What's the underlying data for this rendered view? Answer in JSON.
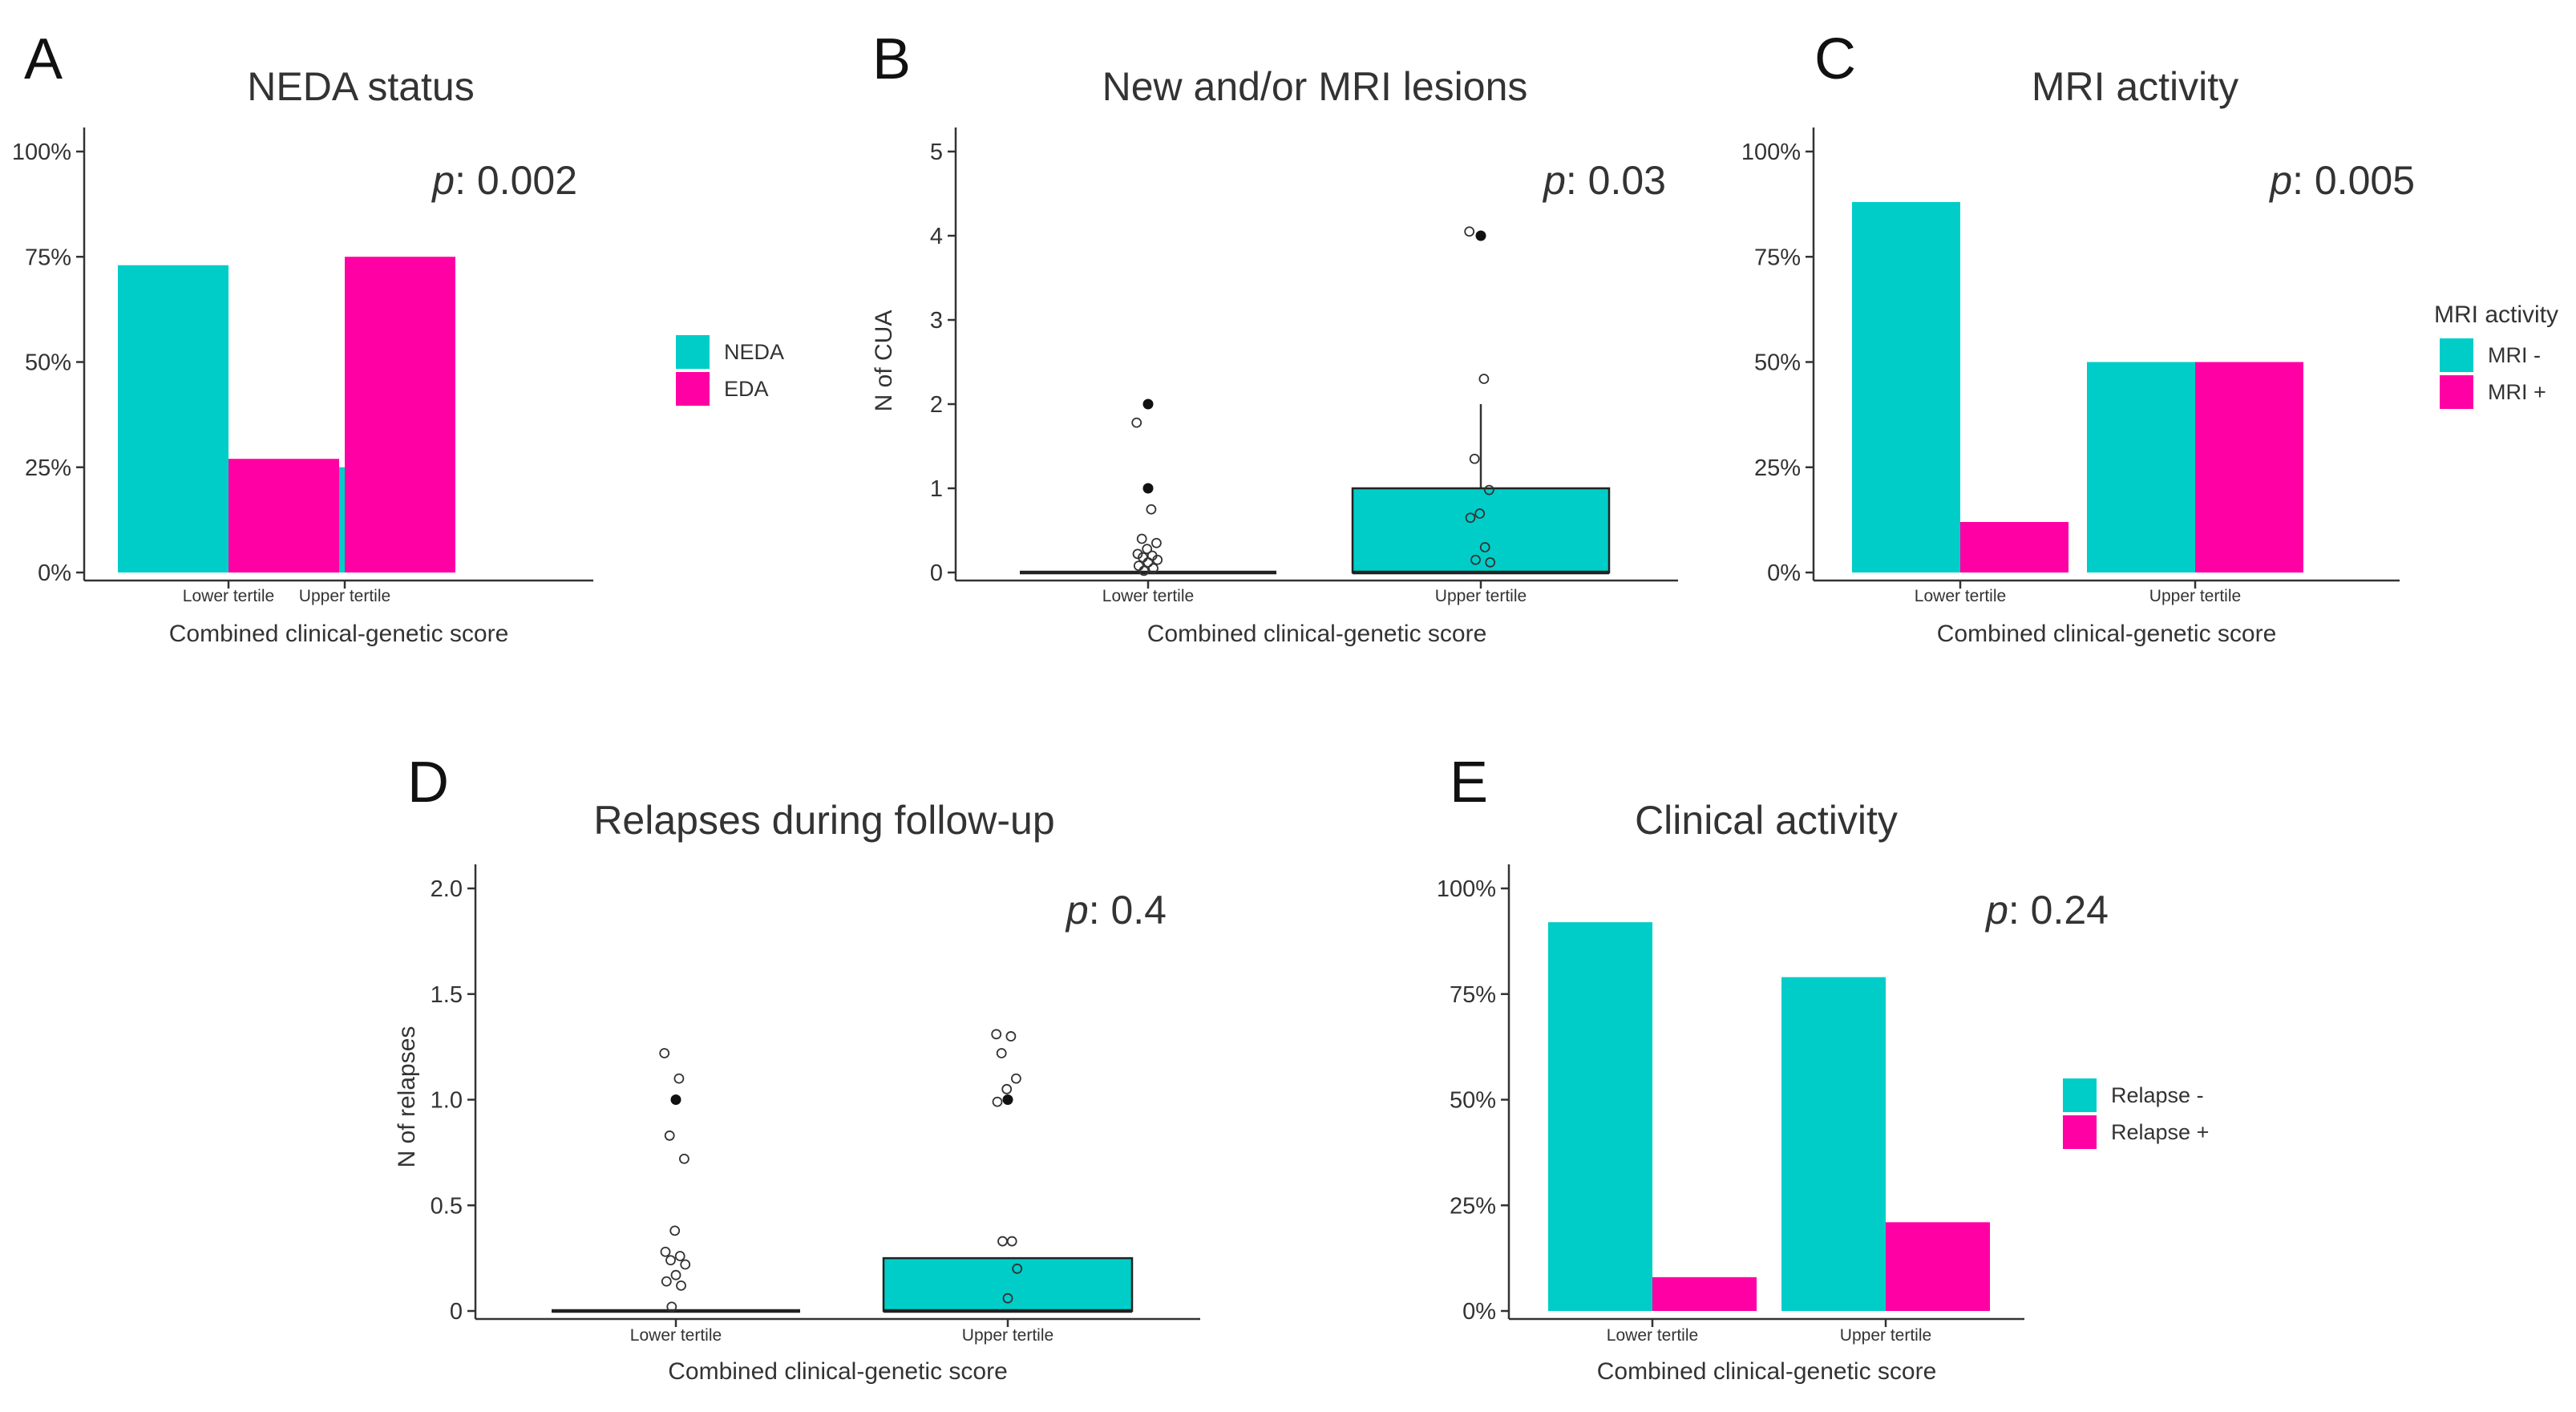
{
  "colors": {
    "teal": "#00cdc8",
    "magenta": "#ff00a4"
  },
  "chart_data": [
    {
      "panel": "A",
      "type": "bar",
      "title": "NEDA status",
      "xlabel": "Combined clinical-genetic score",
      "ylabel": "",
      "categories": [
        "Lower tertile",
        "Upper tertile"
      ],
      "series": [
        {
          "name": "NEDA",
          "color": "#00cdc8",
          "values": [
            0.73,
            0.25
          ]
        },
        {
          "name": "EDA",
          "color": "#ff00a4",
          "values": [
            0.27,
            0.75
          ]
        }
      ],
      "ylim": [
        0,
        1
      ],
      "yticks": [
        0,
        0.25,
        0.5,
        0.75,
        1
      ],
      "ytick_labels": [
        "0%",
        "25%",
        "50%",
        "75%",
        "100%"
      ],
      "legend_title": "",
      "pvalue": {
        "label": "p",
        "text": ": 0.002"
      }
    },
    {
      "panel": "B",
      "type": "boxplot",
      "title": "New and/or MRI lesions",
      "xlabel": "Combined clinical-genetic score",
      "ylabel": "N of CUA",
      "categories": [
        "Lower tertile",
        "Upper tertile"
      ],
      "boxes": [
        {
          "q1": 0,
          "median": 0,
          "q3": 0,
          "whisker_low": 0,
          "whisker_high": 0,
          "outliers": [
            2,
            1
          ],
          "points": [
            1.78,
            0.75,
            0.4,
            0.35,
            0.28,
            0.22,
            0.2,
            0.18,
            0.15,
            0.12,
            0.08,
            0.05,
            0.02
          ]
        },
        {
          "q1": 0,
          "median": 0,
          "q3": 1,
          "whisker_low": 0,
          "whisker_high": 2,
          "outliers": [
            4
          ],
          "points": [
            4.05,
            2.3,
            1.35,
            0.98,
            0.7,
            0.65,
            0.3,
            0.15,
            0.12
          ]
        }
      ],
      "ylim": [
        0,
        5
      ],
      "yticks": [
        0,
        1,
        2,
        3,
        4,
        5
      ],
      "ytick_labels": [
        "0",
        "1",
        "2",
        "3",
        "4",
        "5"
      ],
      "pvalue": {
        "label": "p",
        "text": ": 0.03"
      }
    },
    {
      "panel": "C",
      "type": "bar",
      "title": "MRI activity",
      "xlabel": "Combined clinical-genetic score",
      "ylabel": "",
      "categories": [
        "Lower tertile",
        "Upper tertile"
      ],
      "series": [
        {
          "name": "MRI -",
          "color": "#00cdc8",
          "values": [
            0.88,
            0.5
          ]
        },
        {
          "name": "MRI +",
          "color": "#ff00a4",
          "values": [
            0.12,
            0.5
          ]
        }
      ],
      "ylim": [
        0,
        1
      ],
      "yticks": [
        0,
        0.25,
        0.5,
        0.75,
        1
      ],
      "ytick_labels": [
        "0%",
        "25%",
        "50%",
        "75%",
        "100%"
      ],
      "legend_title": "MRI activity",
      "pvalue": {
        "label": "p",
        "text": ": 0.005"
      }
    },
    {
      "panel": "D",
      "type": "boxplot",
      "title": "Relapses during follow-up",
      "xlabel": "Combined clinical-genetic score",
      "ylabel": "N of relapses",
      "categories": [
        "Lower tertile",
        "Upper tertile"
      ],
      "boxes": [
        {
          "q1": 0,
          "median": 0,
          "q3": 0,
          "whisker_low": 0,
          "whisker_high": 0,
          "outliers": [
            1
          ],
          "points": [
            1.22,
            1.1,
            0.83,
            0.72,
            0.38,
            0.28,
            0.26,
            0.24,
            0.22,
            0.17,
            0.14,
            0.12,
            0.02
          ]
        },
        {
          "q1": 0,
          "median": 0,
          "q3": 0.25,
          "whisker_low": 0,
          "whisker_high": 0.25,
          "outliers": [
            1
          ],
          "points": [
            1.31,
            1.3,
            1.22,
            1.1,
            1.05,
            0.99,
            0.33,
            0.33,
            0.2,
            0.06
          ]
        }
      ],
      "ylim": [
        0,
        2
      ],
      "yticks": [
        0,
        0.5,
        1,
        1.5,
        2
      ],
      "ytick_labels": [
        "0",
        "0.5",
        "1.0",
        "1.5",
        "2.0"
      ],
      "pvalue": {
        "label": "p",
        "text": ": 0.4"
      }
    },
    {
      "panel": "E",
      "type": "bar",
      "title": "Clinical activity",
      "xlabel": "Combined clinical-genetic score",
      "ylabel": "",
      "categories": [
        "Lower tertile",
        "Upper tertile"
      ],
      "series": [
        {
          "name": "Relapse -",
          "color": "#00cdc8",
          "values": [
            0.92,
            0.79
          ]
        },
        {
          "name": "Relapse +",
          "color": "#ff00a4",
          "values": [
            0.08,
            0.21
          ]
        }
      ],
      "ylim": [
        0,
        1
      ],
      "yticks": [
        0,
        0.25,
        0.5,
        0.75,
        1
      ],
      "ytick_labels": [
        "0%",
        "25%",
        "50%",
        "75%",
        "100%"
      ],
      "legend_title": "",
      "pvalue": {
        "label": "p",
        "text": ": 0.24"
      }
    }
  ]
}
